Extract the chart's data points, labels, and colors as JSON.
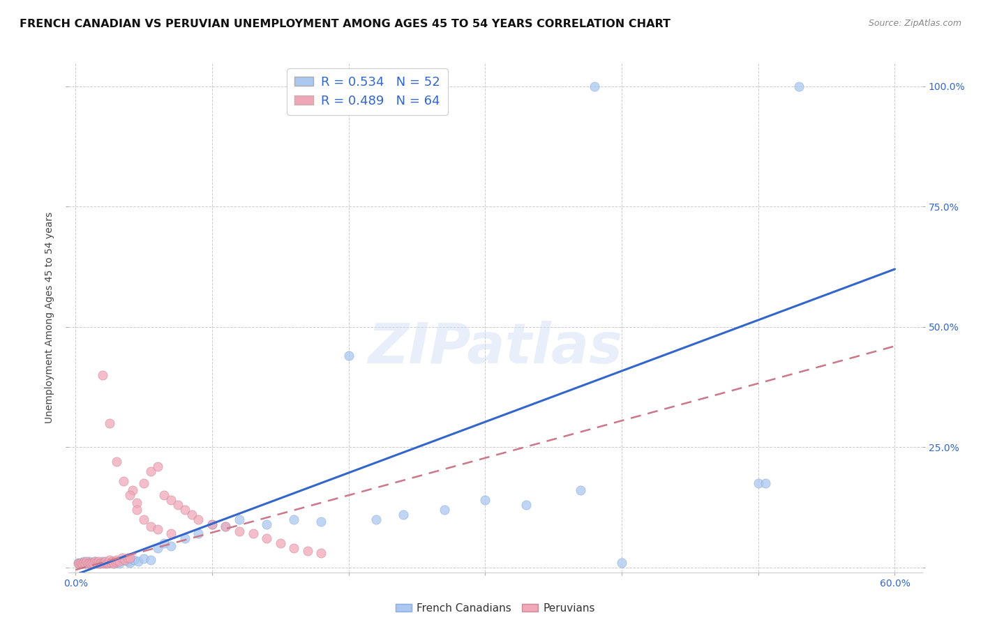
{
  "title": "FRENCH CANADIAN VS PERUVIAN UNEMPLOYMENT AMONG AGES 45 TO 54 YEARS CORRELATION CHART",
  "source": "Source: ZipAtlas.com",
  "xlabel": "",
  "ylabel": "Unemployment Among Ages 45 to 54 years",
  "xlim": [
    -0.005,
    0.62
  ],
  "ylim": [
    -0.01,
    1.05
  ],
  "ytick_positions": [
    0.0,
    0.25,
    0.5,
    0.75,
    1.0
  ],
  "ytick_labels": [
    "",
    "25.0%",
    "50.0%",
    "75.0%",
    "100.0%"
  ],
  "background_color": "#ffffff",
  "grid_color": "#cccccc",
  "watermark_text": "ZIPatlas",
  "blue_R": 0.534,
  "blue_N": 52,
  "pink_R": 0.489,
  "pink_N": 64,
  "blue_color": "#aac8f0",
  "pink_color": "#f0a8b8",
  "blue_line_color": "#3366cc",
  "pink_line_color": "#cc7788",
  "title_fontsize": 11.5,
  "axis_label_fontsize": 10,
  "tick_fontsize": 10,
  "blue_line_x0": 0.0,
  "blue_line_y0": -0.015,
  "blue_line_x1": 0.6,
  "blue_line_y1": 0.62,
  "pink_line_x0": 0.0,
  "pink_line_y0": -0.005,
  "pink_line_x1": 0.6,
  "pink_line_y1": 0.46,
  "blue_x": [
    0.002,
    0.003,
    0.004,
    0.005,
    0.006,
    0.007,
    0.008,
    0.009,
    0.01,
    0.011,
    0.012,
    0.013,
    0.014,
    0.015,
    0.016,
    0.018,
    0.02,
    0.022,
    0.025,
    0.028,
    0.03,
    0.032,
    0.035,
    0.038,
    0.04,
    0.043,
    0.046,
    0.05,
    0.055,
    0.06,
    0.065,
    0.07,
    0.08,
    0.09,
    0.1,
    0.11,
    0.12,
    0.14,
    0.16,
    0.18,
    0.2,
    0.22,
    0.24,
    0.27,
    0.3,
    0.33,
    0.37,
    0.4,
    0.5,
    0.505,
    0.38,
    0.53
  ],
  "blue_y": [
    0.01,
    0.008,
    0.01,
    0.008,
    0.012,
    0.008,
    0.01,
    0.008,
    0.012,
    0.008,
    0.01,
    0.008,
    0.012,
    0.008,
    0.01,
    0.008,
    0.012,
    0.008,
    0.01,
    0.008,
    0.01,
    0.008,
    0.015,
    0.012,
    0.01,
    0.015,
    0.012,
    0.018,
    0.015,
    0.04,
    0.05,
    0.045,
    0.06,
    0.07,
    0.09,
    0.085,
    0.1,
    0.09,
    0.1,
    0.095,
    0.44,
    0.1,
    0.11,
    0.12,
    0.14,
    0.13,
    0.16,
    0.01,
    0.175,
    0.175,
    1.0,
    1.0
  ],
  "pink_x": [
    0.002,
    0.003,
    0.004,
    0.005,
    0.006,
    0.007,
    0.008,
    0.009,
    0.01,
    0.011,
    0.012,
    0.013,
    0.014,
    0.015,
    0.016,
    0.017,
    0.018,
    0.019,
    0.02,
    0.021,
    0.022,
    0.023,
    0.024,
    0.025,
    0.026,
    0.027,
    0.028,
    0.029,
    0.03,
    0.032,
    0.034,
    0.036,
    0.038,
    0.04,
    0.042,
    0.045,
    0.05,
    0.055,
    0.06,
    0.065,
    0.07,
    0.075,
    0.08,
    0.085,
    0.09,
    0.1,
    0.11,
    0.12,
    0.13,
    0.14,
    0.15,
    0.16,
    0.17,
    0.18,
    0.02,
    0.025,
    0.03,
    0.035,
    0.04,
    0.045,
    0.05,
    0.055,
    0.06,
    0.07
  ],
  "pink_y": [
    0.008,
    0.008,
    0.01,
    0.008,
    0.01,
    0.008,
    0.012,
    0.008,
    0.01,
    0.008,
    0.01,
    0.008,
    0.012,
    0.01,
    0.008,
    0.012,
    0.008,
    0.01,
    0.008,
    0.01,
    0.012,
    0.008,
    0.01,
    0.015,
    0.01,
    0.012,
    0.008,
    0.012,
    0.015,
    0.012,
    0.02,
    0.015,
    0.02,
    0.02,
    0.16,
    0.135,
    0.175,
    0.2,
    0.21,
    0.15,
    0.14,
    0.13,
    0.12,
    0.11,
    0.1,
    0.09,
    0.085,
    0.075,
    0.07,
    0.06,
    0.05,
    0.04,
    0.035,
    0.03,
    0.4,
    0.3,
    0.22,
    0.18,
    0.15,
    0.12,
    0.1,
    0.085,
    0.08,
    0.07
  ]
}
